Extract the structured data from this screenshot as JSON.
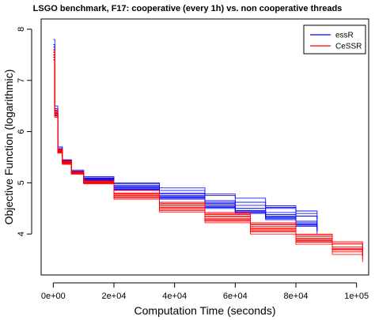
{
  "chart_data": {
    "type": "line",
    "title": "LSGO benchmark, F17: cooperative (every 1h) vs. non cooperative threads",
    "xlabel": "Computation Time (seconds)",
    "ylabel": "Objective Function (logarithmic)",
    "xlim": [
      -4000,
      104000
    ],
    "ylim": [
      3.2,
      8.2
    ],
    "x_ticks": [
      {
        "value": 0,
        "label": "0e+00"
      },
      {
        "value": 20000,
        "label": "2e+04"
      },
      {
        "value": 40000,
        "label": "4e+04"
      },
      {
        "value": 60000,
        "label": "6e+04"
      },
      {
        "value": 80000,
        "label": "8e+04"
      },
      {
        "value": 100000,
        "label": "1e+05"
      }
    ],
    "y_ticks": [
      {
        "value": 4,
        "label": "4"
      },
      {
        "value": 5,
        "label": "5"
      },
      {
        "value": 6,
        "label": "6"
      },
      {
        "value": 7,
        "label": "7"
      },
      {
        "value": 8,
        "label": "8"
      }
    ],
    "legend": {
      "position": "top-right",
      "entries": [
        {
          "name": "essR",
          "color": "#0000ff"
        },
        {
          "name": "CeSSR",
          "color": "#ff0000"
        }
      ]
    },
    "grid": false,
    "series": [
      {
        "group": "essR",
        "color": "#0000ff",
        "x": [
          0,
          500,
          1500,
          3000,
          6000,
          10000,
          20000,
          35000,
          50000,
          60000,
          70000,
          80000,
          87000
        ],
        "y": [
          7.8,
          6.5,
          5.7,
          5.45,
          5.25,
          5.12,
          4.98,
          4.85,
          4.75,
          4.62,
          4.52,
          4.45,
          4.4
        ]
      },
      {
        "group": "essR",
        "color": "#0000ff",
        "x": [
          0,
          500,
          1500,
          3000,
          6000,
          10000,
          20000,
          35000,
          50000,
          60000,
          70000,
          80000,
          87000
        ],
        "y": [
          7.6,
          6.4,
          5.65,
          5.42,
          5.22,
          5.1,
          5.0,
          4.9,
          4.78,
          4.7,
          4.55,
          4.35,
          4.25
        ]
      },
      {
        "group": "essR",
        "color": "#0000ff",
        "x": [
          0,
          500,
          1500,
          3000,
          6000,
          10000,
          20000,
          35000,
          50000,
          60000,
          70000,
          80000,
          87000
        ],
        "y": [
          7.5,
          6.3,
          5.6,
          5.38,
          5.2,
          5.08,
          4.95,
          4.8,
          4.65,
          4.56,
          4.5,
          4.4,
          4.3
        ]
      },
      {
        "group": "essR",
        "color": "#0000ff",
        "x": [
          0,
          500,
          1500,
          3000,
          6000,
          10000,
          20000,
          35000,
          50000,
          60000,
          70000,
          80000,
          87000
        ],
        "y": [
          7.4,
          6.35,
          5.62,
          5.4,
          5.2,
          5.05,
          4.92,
          4.75,
          4.6,
          4.5,
          4.42,
          4.35,
          4.2
        ]
      },
      {
        "group": "essR",
        "color": "#0000ff",
        "x": [
          0,
          500,
          1500,
          3000,
          6000,
          10000,
          20000,
          35000,
          50000,
          60000,
          70000,
          80000,
          87000
        ],
        "y": [
          7.7,
          6.45,
          5.7,
          5.44,
          5.23,
          5.09,
          4.9,
          4.72,
          4.55,
          4.45,
          4.35,
          4.25,
          4.12
        ]
      },
      {
        "group": "essR",
        "color": "#0000ff",
        "x": [
          0,
          500,
          1500,
          3000,
          6000,
          10000,
          20000,
          35000,
          50000,
          60000,
          70000,
          80000,
          87000
        ],
        "y": [
          7.55,
          6.38,
          5.64,
          5.41,
          5.21,
          5.06,
          4.88,
          4.7,
          4.52,
          4.42,
          4.3,
          4.18,
          4.08
        ]
      },
      {
        "group": "essR",
        "color": "#0000ff",
        "x": [
          0,
          500,
          1500,
          3000,
          6000,
          10000,
          20000,
          35000,
          50000,
          60000,
          70000,
          80000,
          87000
        ],
        "y": [
          7.45,
          6.32,
          5.61,
          5.39,
          5.19,
          5.04,
          4.86,
          4.68,
          4.5,
          4.4,
          4.28,
          4.15,
          4.05
        ]
      },
      {
        "group": "essR",
        "color": "#0000ff",
        "x": [
          0,
          500,
          1500,
          3000,
          6000,
          10000,
          20000,
          35000,
          50000,
          60000,
          70000,
          80000,
          87000
        ],
        "y": [
          7.65,
          6.42,
          5.67,
          5.43,
          5.22,
          5.07,
          4.93,
          4.78,
          4.62,
          4.5,
          4.38,
          4.22,
          4.1
        ]
      },
      {
        "group": "essR",
        "color": "#0000ff",
        "x": [
          0,
          500,
          1500,
          3000,
          6000,
          10000,
          20000,
          35000,
          50000,
          60000,
          70000,
          80000,
          87000
        ],
        "y": [
          7.5,
          6.36,
          5.63,
          5.4,
          5.2,
          5.05,
          4.9,
          4.74,
          4.58,
          4.46,
          4.33,
          4.2,
          4.06
        ]
      },
      {
        "group": "essR",
        "color": "#0000ff",
        "x": [
          0,
          500,
          1500,
          3000,
          6000,
          10000,
          20000,
          35000,
          50000,
          60000,
          70000,
          80000,
          87000
        ],
        "y": [
          7.6,
          6.4,
          5.66,
          5.42,
          5.21,
          5.06,
          4.87,
          4.7,
          4.54,
          4.43,
          4.32,
          4.17,
          4.0
        ]
      },
      {
        "group": "CeSSR",
        "color": "#ff0000",
        "x": [
          0,
          500,
          1500,
          3000,
          6000,
          10000,
          20000,
          35000,
          50000,
          65000,
          80000,
          92000,
          102000
        ],
        "y": [
          7.55,
          6.4,
          5.65,
          5.42,
          5.22,
          5.05,
          4.85,
          4.62,
          4.42,
          4.22,
          4.0,
          3.85,
          3.72
        ]
      },
      {
        "group": "CeSSR",
        "color": "#ff0000",
        "x": [
          0,
          500,
          1500,
          3000,
          6000,
          10000,
          20000,
          35000,
          50000,
          65000,
          80000,
          92000,
          102000
        ],
        "y": [
          7.5,
          6.35,
          5.62,
          5.4,
          5.2,
          5.02,
          4.8,
          4.58,
          4.38,
          4.18,
          3.95,
          3.8,
          3.68
        ]
      },
      {
        "group": "CeSSR",
        "color": "#ff0000",
        "x": [
          0,
          500,
          1500,
          3000,
          6000,
          10000,
          20000,
          35000,
          50000,
          65000,
          80000,
          92000,
          102000
        ],
        "y": [
          7.6,
          6.42,
          5.66,
          5.43,
          5.21,
          5.03,
          4.78,
          4.55,
          4.35,
          4.15,
          3.92,
          3.75,
          3.62
        ]
      },
      {
        "group": "CeSSR",
        "color": "#ff0000",
        "x": [
          0,
          500,
          1500,
          3000,
          6000,
          10000,
          20000,
          35000,
          50000,
          65000,
          80000,
          92000,
          102000
        ],
        "y": [
          7.45,
          6.3,
          5.6,
          5.38,
          5.18,
          5.0,
          4.75,
          4.52,
          4.3,
          4.1,
          3.9,
          3.72,
          3.58
        ]
      },
      {
        "group": "CeSSR",
        "color": "#ff0000",
        "x": [
          0,
          500,
          1500,
          3000,
          6000,
          10000,
          20000,
          35000,
          50000,
          65000,
          80000,
          92000,
          102000
        ],
        "y": [
          7.55,
          6.38,
          5.63,
          5.41,
          5.19,
          5.01,
          4.72,
          4.5,
          4.28,
          4.06,
          3.86,
          3.68,
          3.55
        ]
      },
      {
        "group": "CeSSR",
        "color": "#ff0000",
        "x": [
          0,
          500,
          1500,
          3000,
          6000,
          10000,
          20000,
          35000,
          50000,
          65000,
          80000,
          92000,
          102000
        ],
        "y": [
          7.4,
          6.28,
          5.58,
          5.36,
          5.17,
          4.98,
          4.7,
          4.46,
          4.25,
          4.04,
          3.84,
          3.65,
          3.5
        ]
      },
      {
        "group": "CeSSR",
        "color": "#ff0000",
        "x": [
          0,
          500,
          1500,
          3000,
          6000,
          10000,
          20000,
          35000,
          50000,
          65000,
          80000,
          92000,
          102000
        ],
        "y": [
          7.5,
          6.33,
          5.61,
          5.39,
          5.18,
          5.0,
          4.68,
          4.43,
          4.22,
          4.0,
          3.8,
          3.6,
          3.45
        ]
      },
      {
        "group": "CeSSR",
        "color": "#ff0000",
        "x": [
          0,
          500,
          1500,
          3000,
          6000,
          10000,
          20000,
          35000,
          50000,
          65000,
          80000,
          92000,
          102000
        ],
        "y": [
          7.6,
          6.4,
          5.64,
          5.42,
          5.2,
          5.02,
          4.76,
          4.55,
          4.33,
          4.12,
          3.88,
          3.7,
          3.6
        ]
      },
      {
        "group": "CeSSR",
        "color": "#ff0000",
        "x": [
          0,
          500,
          1500,
          3000,
          6000,
          10000,
          20000,
          35000,
          50000,
          65000,
          80000,
          92000,
          102000
        ],
        "y": [
          7.45,
          6.31,
          5.59,
          5.37,
          5.17,
          4.99,
          4.73,
          4.48,
          4.27,
          4.08,
          3.87,
          3.7,
          3.56
        ]
      },
      {
        "group": "CeSSR",
        "color": "#ff0000",
        "x": [
          0,
          500,
          1500,
          3000,
          6000,
          10000,
          20000,
          35000,
          50000,
          65000,
          80000,
          92000,
          102000
        ],
        "y": [
          7.55,
          6.37,
          5.62,
          5.4,
          5.19,
          5.01,
          4.8,
          4.6,
          4.4,
          4.2,
          3.98,
          3.82,
          3.66
        ]
      }
    ]
  }
}
